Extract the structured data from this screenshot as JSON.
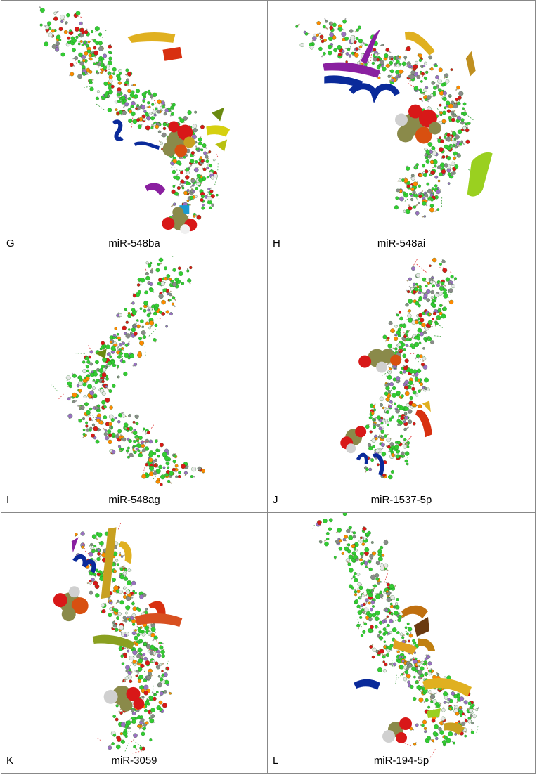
{
  "panels": [
    {
      "letter": "G",
      "caption": "miR-548ba"
    },
    {
      "letter": "H",
      "caption": "miR-548ai"
    },
    {
      "letter": "I",
      "caption": "miR-548ag"
    },
    {
      "letter": "J",
      "caption": "miR-1537-5p"
    },
    {
      "letter": "K",
      "caption": "miR-3059"
    },
    {
      "letter": "L",
      "caption": "miR-194-5p"
    }
  ],
  "colors": {
    "atom_green": "#33cc33",
    "atom_orange": "#ff8800",
    "atom_white": "#e8e8e8",
    "atom_red": "#d81818",
    "ligand_olive": "#8a8a4a",
    "ribbon_blue": "#0a2a9a",
    "ribbon_yellow": "#e0b020",
    "ribbon_red": "#d83010",
    "ribbon_purple": "#8a20a0",
    "ribbon_lime": "#9ad020",
    "border": "#888888"
  }
}
